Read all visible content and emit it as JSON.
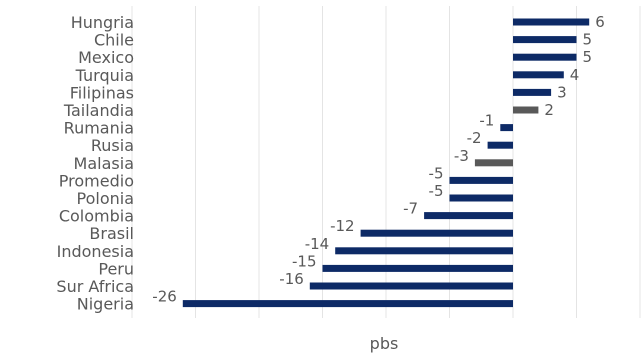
{
  "chart_data": {
    "type": "bar",
    "orientation": "horizontal",
    "categories": [
      "Hungria",
      "Chile",
      "Mexico",
      "Turquia",
      "Filipinas",
      "Tailandia",
      "Rumania",
      "Rusia",
      "Malasia",
      "Promedio",
      "Polonia",
      "Colombia",
      "Brasil",
      "Indonesia",
      "Peru",
      "Sur Africa",
      "Nigeria"
    ],
    "values": [
      6,
      5,
      5,
      4,
      3,
      2,
      -1,
      -2,
      -3,
      -5,
      -5,
      -7,
      -12,
      -14,
      -15,
      -16,
      -26
    ],
    "data_labels": [
      "6",
      "5",
      "5",
      "4",
      "3",
      "2",
      "-1",
      "-2",
      "-3",
      "-5",
      "-5",
      "-7",
      "-12",
      "-14",
      "-15",
      "-16",
      "-26"
    ],
    "highlighted": [
      "Tailandia",
      "Malasia"
    ],
    "colors": {
      "default": "#0d2a66",
      "highlight": "#595959",
      "grid": "#e4e4e4",
      "label": "#595959"
    },
    "xlabel": "pbs",
    "ylabel": "",
    "title": "",
    "xlim": [
      -30,
      10
    ],
    "grid": true,
    "legend": "none"
  }
}
